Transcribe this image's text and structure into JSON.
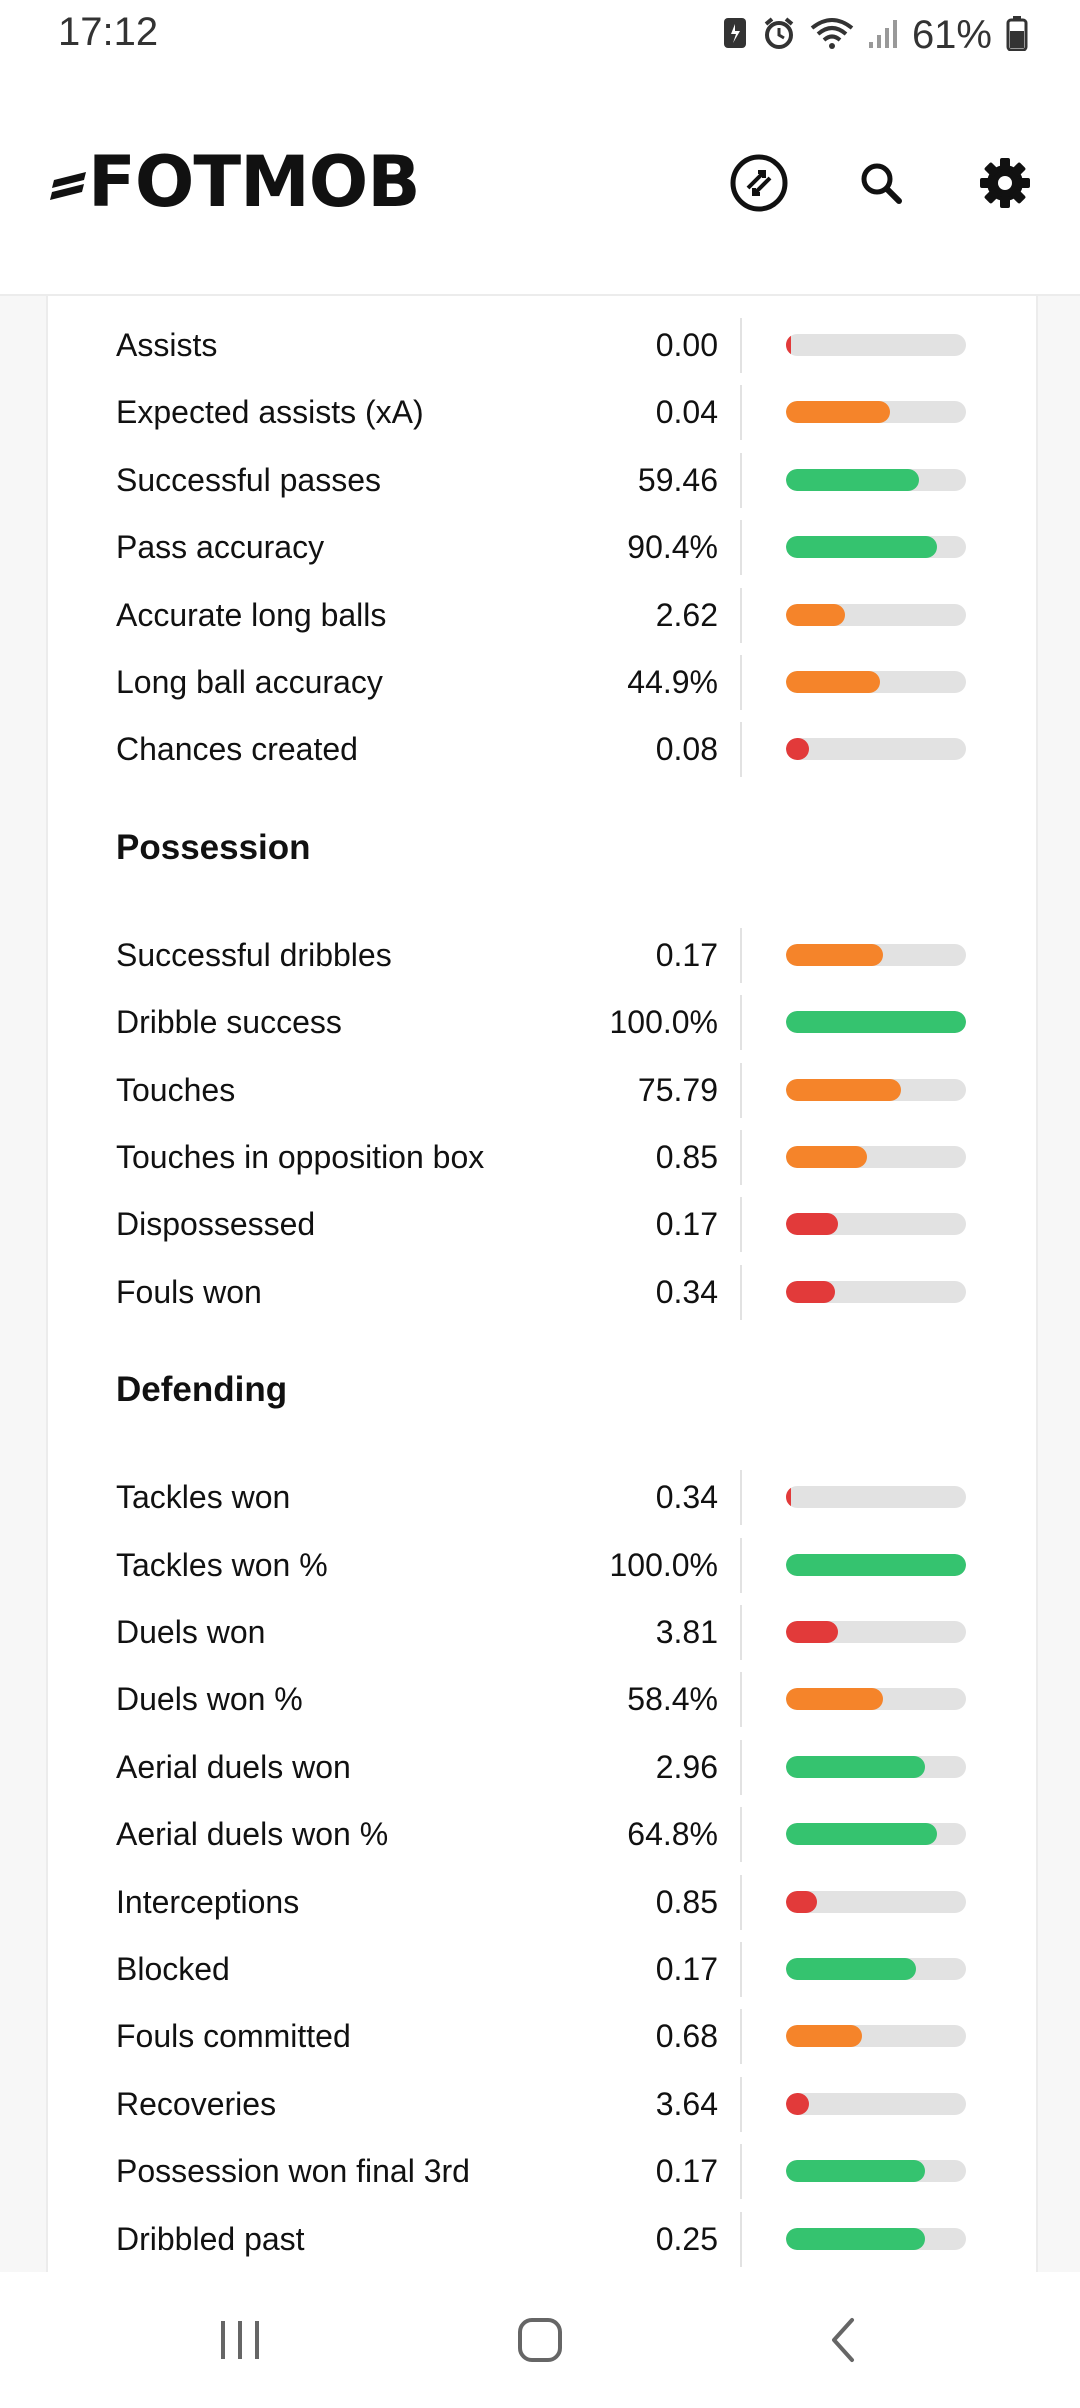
{
  "status_bar": {
    "time": "17:12",
    "battery": "61%"
  },
  "header": {
    "logo": "FOTMOB",
    "icons": [
      "swap-icon",
      "search-icon",
      "settings-icon"
    ]
  },
  "colors": {
    "good": "#35c36f",
    "average": "#f5842a",
    "poor": "#e23a3a",
    "track": "#e2e2e2"
  },
  "sections": [
    {
      "title": "",
      "rows": [
        {
          "label": "Assists",
          "value": "0.00",
          "bar": 0.02,
          "color": "poor"
        },
        {
          "label": "Expected assists (xA)",
          "value": "0.04",
          "bar": 0.58,
          "color": "average"
        },
        {
          "label": "Successful passes",
          "value": "59.46",
          "bar": 0.74,
          "color": "good"
        },
        {
          "label": "Pass accuracy",
          "value": "90.4%",
          "bar": 0.84,
          "color": "good"
        },
        {
          "label": "Accurate long balls",
          "value": "2.62",
          "bar": 0.33,
          "color": "average"
        },
        {
          "label": "Long ball accuracy",
          "value": "44.9%",
          "bar": 0.52,
          "color": "average"
        },
        {
          "label": "Chances created",
          "value": "0.08",
          "bar": 0.13,
          "color": "poor"
        }
      ]
    },
    {
      "title": "Possession",
      "rows": [
        {
          "label": "Successful dribbles",
          "value": "0.17",
          "bar": 0.54,
          "color": "average"
        },
        {
          "label": "Dribble success",
          "value": "100.0%",
          "bar": 1.0,
          "color": "good"
        },
        {
          "label": "Touches",
          "value": "75.79",
          "bar": 0.64,
          "color": "average"
        },
        {
          "label": "Touches in opposition box",
          "value": "0.85",
          "bar": 0.45,
          "color": "average"
        },
        {
          "label": "Dispossessed",
          "value": "0.17",
          "bar": 0.29,
          "color": "poor"
        },
        {
          "label": "Fouls won",
          "value": "0.34",
          "bar": 0.27,
          "color": "poor"
        }
      ]
    },
    {
      "title": "Defending",
      "rows": [
        {
          "label": "Tackles won",
          "value": "0.34",
          "bar": 0.02,
          "color": "poor"
        },
        {
          "label": "Tackles won %",
          "value": "100.0%",
          "bar": 1.0,
          "color": "good"
        },
        {
          "label": "Duels won",
          "value": "3.81",
          "bar": 0.29,
          "color": "poor"
        },
        {
          "label": "Duels won %",
          "value": "58.4%",
          "bar": 0.54,
          "color": "average"
        },
        {
          "label": "Aerial duels won",
          "value": "2.96",
          "bar": 0.77,
          "color": "good"
        },
        {
          "label": "Aerial duels won %",
          "value": "64.8%",
          "bar": 0.84,
          "color": "good"
        },
        {
          "label": "Interceptions",
          "value": "0.85",
          "bar": 0.17,
          "color": "poor"
        },
        {
          "label": "Blocked",
          "value": "0.17",
          "bar": 0.72,
          "color": "good"
        },
        {
          "label": "Fouls committed",
          "value": "0.68",
          "bar": 0.42,
          "color": "average"
        },
        {
          "label": "Recoveries",
          "value": "3.64",
          "bar": 0.13,
          "color": "poor"
        },
        {
          "label": "Possession won final 3rd",
          "value": "0.17",
          "bar": 0.77,
          "color": "good"
        },
        {
          "label": "Dribbled past",
          "value": "0.25",
          "bar": 0.77,
          "color": "good"
        }
      ]
    }
  ]
}
